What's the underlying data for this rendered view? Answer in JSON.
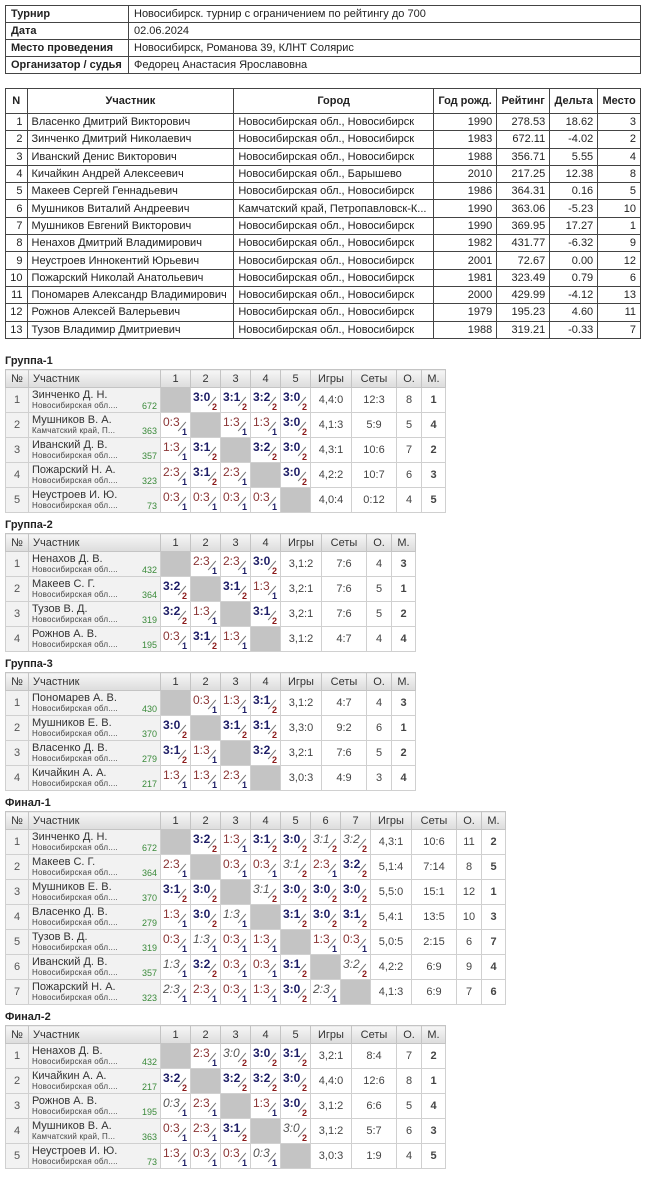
{
  "info": [
    {
      "k": "Турнир",
      "v": "Новосибирск. турнир с ограничением по рейтингу до 700"
    },
    {
      "k": "Дата",
      "v": "02.06.2024"
    },
    {
      "k": "Место проведения",
      "v": "Новосибирск, Романова 39, КЛНТ Солярис"
    },
    {
      "k": "Организатор / судья",
      "v": "Федорец Анастасия Ярославовна"
    }
  ],
  "main": {
    "headers": [
      "N",
      "Участник",
      "Город",
      "Год рожд.",
      "Рейтинг",
      "Дельта",
      "Место"
    ],
    "rows": [
      [
        "1",
        "Власенко Дмитрий Викторович",
        "Новосибирская обл., Новосибирск",
        "1990",
        "278.53",
        "18.62",
        "3"
      ],
      [
        "2",
        "Зинченко Дмитрий Николаевич",
        "Новосибирская обл., Новосибирск",
        "1983",
        "672.11",
        "-4.02",
        "2"
      ],
      [
        "3",
        "Иванский Денис Викторович",
        "Новосибирская обл., Новосибирск",
        "1988",
        "356.71",
        "5.55",
        "4"
      ],
      [
        "4",
        "Кичайкин Андрей Алексеевич",
        "Новосибирская обл., Барышево",
        "2010",
        "217.25",
        "12.38",
        "8"
      ],
      [
        "5",
        "Макеев Сергей Геннадьевич",
        "Новосибирская обл., Новосибирск",
        "1986",
        "364.31",
        "0.16",
        "5"
      ],
      [
        "6",
        "Мушников Виталий Андреевич",
        "Камчатский край, Петропавловск-К...",
        "1990",
        "363.06",
        "-5.23",
        "10"
      ],
      [
        "7",
        "Мушников Евгений Викторович",
        "Новосибирская обл., Новосибирск",
        "1990",
        "369.95",
        "17.27",
        "1"
      ],
      [
        "8",
        "Ненахов Дмитрий Владимирович",
        "Новосибирская обл., Новосибирск",
        "1982",
        "431.77",
        "-6.32",
        "9"
      ],
      [
        "9",
        "Неустроев Иннокентий Юрьевич",
        "Новосибирская обл., Новосибирск",
        "2001",
        "72.67",
        "0.00",
        "12"
      ],
      [
        "10",
        "Пожарский Николай Анатольевич",
        "Новосибирская обл., Новосибирск",
        "1981",
        "323.49",
        "0.79",
        "6"
      ],
      [
        "11",
        "Пономарев Александр Владимирович",
        "Новосибирская обл., Новосибирск",
        "2000",
        "429.99",
        "-4.12",
        "13"
      ],
      [
        "12",
        "Рожнов Алексей Валерьевич",
        "Новосибирская обл., Новосибирск",
        "1979",
        "195.23",
        "4.60",
        "11"
      ],
      [
        "13",
        "Тузов Владимир Дмитриевич",
        "Новосибирская обл., Новосибирск",
        "1988",
        "319.21",
        "-0.33",
        "7"
      ]
    ]
  },
  "group_headers": {
    "no": "№",
    "player": "Участник",
    "games": "Игры",
    "sets": "Сеты",
    "points": "О.",
    "place": "М."
  },
  "groups": [
    {
      "title": "Группа-1",
      "players": [
        {
          "name": "Зинченко Д. Н.",
          "region": "Новосибирская обл....",
          "rating": "672",
          "cells": [
            null,
            "3:0|2",
            "3:1|2",
            "3:2|2",
            "3:0|2"
          ],
          "games": "4,4:0",
          "sets": "12:3",
          "points": "8",
          "place": "1"
        },
        {
          "name": "Мушников В. А.",
          "region": "Камчатский край, П...",
          "rating": "363",
          "cells": [
            "0:3|1",
            null,
            "1:3|1",
            "1:3|1",
            "3:0|2"
          ],
          "games": "4,1:3",
          "sets": "5:9",
          "points": "5",
          "place": "4"
        },
        {
          "name": "Иванский Д. В.",
          "region": "Новосибирская обл....",
          "rating": "357",
          "cells": [
            "1:3|1",
            "3:1|2",
            null,
            "3:2|2",
            "3:0|2"
          ],
          "games": "4,3:1",
          "sets": "10:6",
          "points": "7",
          "place": "2"
        },
        {
          "name": "Пожарский Н. А.",
          "region": "Новосибирская обл....",
          "rating": "323",
          "cells": [
            "2:3|1",
            "3:1|2",
            "2:3|1",
            null,
            "3:0|2"
          ],
          "games": "4,2:2",
          "sets": "10:7",
          "points": "6",
          "place": "3"
        },
        {
          "name": "Неустроев И. Ю.",
          "region": "Новосибирская обл....",
          "rating": "73",
          "cells": [
            "0:3|1",
            "0:3|1",
            "0:3|1",
            "0:3|1",
            null
          ],
          "games": "4,0:4",
          "sets": "0:12",
          "points": "4",
          "place": "5"
        }
      ]
    },
    {
      "title": "Группа-2",
      "players": [
        {
          "name": "Ненахов Д. В.",
          "region": "Новосибирская обл....",
          "rating": "432",
          "cells": [
            null,
            "2:3|1",
            "2:3|1",
            "3:0|2"
          ],
          "games": "3,1:2",
          "sets": "7:6",
          "points": "4",
          "place": "3"
        },
        {
          "name": "Макеев С. Г.",
          "region": "Новосибирская обл....",
          "rating": "364",
          "cells": [
            "3:2|2",
            null,
            "3:1|2",
            "1:3|1"
          ],
          "games": "3,2:1",
          "sets": "7:6",
          "points": "5",
          "place": "1"
        },
        {
          "name": "Тузов В. Д.",
          "region": "Новосибирская обл....",
          "rating": "319",
          "cells": [
            "3:2|2",
            "1:3|1",
            null,
            "3:1|2"
          ],
          "games": "3,2:1",
          "sets": "7:6",
          "points": "5",
          "place": "2"
        },
        {
          "name": "Рожнов А. В.",
          "region": "Новосибирская обл....",
          "rating": "195",
          "cells": [
            "0:3|1",
            "3:1|2",
            "1:3|1",
            null
          ],
          "games": "3,1:2",
          "sets": "4:7",
          "points": "4",
          "place": "4"
        }
      ]
    },
    {
      "title": "Группа-3",
      "players": [
        {
          "name": "Пономарев А. В.",
          "region": "Новосибирская обл....",
          "rating": "430",
          "cells": [
            null,
            "0:3|1",
            "1:3|1",
            "3:1|2"
          ],
          "games": "3,1:2",
          "sets": "4:7",
          "points": "4",
          "place": "3"
        },
        {
          "name": "Мушников Е. В.",
          "region": "Новосибирская обл....",
          "rating": "370",
          "cells": [
            "3:0|2",
            null,
            "3:1|2",
            "3:1|2"
          ],
          "games": "3,3:0",
          "sets": "9:2",
          "points": "6",
          "place": "1"
        },
        {
          "name": "Власенко Д. В.",
          "region": "Новосибирская обл....",
          "rating": "279",
          "cells": [
            "3:1|2",
            "1:3|1",
            null,
            "3:2|2"
          ],
          "games": "3,2:1",
          "sets": "7:6",
          "points": "5",
          "place": "2"
        },
        {
          "name": "Кичайкин А. А.",
          "region": "Новосибирская обл....",
          "rating": "217",
          "cells": [
            "1:3|1",
            "1:3|1",
            "2:3|1",
            null
          ],
          "games": "3,0:3",
          "sets": "4:9",
          "points": "3",
          "place": "4"
        }
      ]
    },
    {
      "title": "Финал-1",
      "players": [
        {
          "name": "Зинченко Д. Н.",
          "region": "Новосибирская обл....",
          "rating": "672",
          "cells": [
            null,
            "3:2|2",
            "1:3|1",
            "3:1|2",
            "3:0|2",
            "3:1|2|i",
            "3:2|2|i"
          ],
          "games": "4,3:1",
          "sets": "10:6",
          "points": "11",
          "place": "2"
        },
        {
          "name": "Макеев С. Г.",
          "region": "Новосибирская обл....",
          "rating": "364",
          "cells": [
            "2:3|1",
            null,
            "0:3|1",
            "0:3|1",
            "3:1|2|i",
            "2:3|1",
            "3:2|2"
          ],
          "games": "5,1:4",
          "sets": "7:14",
          "points": "8",
          "place": "5"
        },
        {
          "name": "Мушников Е. В.",
          "region": "Новосибирская обл....",
          "rating": "370",
          "cells": [
            "3:1|2",
            "3:0|2",
            null,
            "3:1|2|i",
            "3:0|2",
            "3:0|2",
            "3:0|2"
          ],
          "games": "5,5:0",
          "sets": "15:1",
          "points": "12",
          "place": "1"
        },
        {
          "name": "Власенко Д. В.",
          "region": "Новосибирская обл....",
          "rating": "279",
          "cells": [
            "1:3|1",
            "3:0|2",
            "1:3|1|i",
            null,
            "3:1|2",
            "3:0|2",
            "3:1|2"
          ],
          "games": "5,4:1",
          "sets": "13:5",
          "points": "10",
          "place": "3"
        },
        {
          "name": "Тузов В. Д.",
          "region": "Новосибирская обл....",
          "rating": "319",
          "cells": [
            "0:3|1",
            "1:3|1|i",
            "0:3|1",
            "1:3|1",
            null,
            "1:3|1",
            "0:3|1"
          ],
          "games": "5,0:5",
          "sets": "2:15",
          "points": "6",
          "place": "7"
        },
        {
          "name": "Иванский Д. В.",
          "region": "Новосибирская обл....",
          "rating": "357",
          "cells": [
            "1:3|1|i",
            "3:2|2",
            "0:3|1",
            "0:3|1",
            "3:1|2",
            null,
            "3:2|2|i"
          ],
          "games": "4,2:2",
          "sets": "6:9",
          "points": "9",
          "place": "4"
        },
        {
          "name": "Пожарский Н. А.",
          "region": "Новосибирская обл....",
          "rating": "323",
          "cells": [
            "2:3|1|i",
            "2:3|1",
            "0:3|1",
            "1:3|1",
            "3:0|2",
            "2:3|1|i",
            null
          ],
          "games": "4,1:3",
          "sets": "6:9",
          "points": "7",
          "place": "6"
        }
      ]
    },
    {
      "title": "Финал-2",
      "players": [
        {
          "name": "Ненахов Д. В.",
          "region": "Новосибирская обл....",
          "rating": "432",
          "cells": [
            null,
            "2:3|1",
            "3:0|2|i",
            "3:0|2",
            "3:1|2"
          ],
          "games": "3,2:1",
          "sets": "8:4",
          "points": "7",
          "place": "2"
        },
        {
          "name": "Кичайкин А. А.",
          "region": "Новосибирская обл....",
          "rating": "217",
          "cells": [
            "3:2|2",
            null,
            "3:2|2",
            "3:2|2",
            "3:0|2"
          ],
          "games": "4,4:0",
          "sets": "12:6",
          "points": "8",
          "place": "1"
        },
        {
          "name": "Рожнов А. В.",
          "region": "Новосибирская обл....",
          "rating": "195",
          "cells": [
            "0:3|1|i",
            "2:3|1",
            null,
            "1:3|1",
            "3:0|2"
          ],
          "games": "3,1:2",
          "sets": "6:6",
          "points": "5",
          "place": "4"
        },
        {
          "name": "Мушников В. А.",
          "region": "Камчатский край, П...",
          "rating": "363",
          "cells": [
            "0:3|1",
            "2:3|1",
            "3:1|2",
            null,
            "3:0|2|i"
          ],
          "games": "3,1:2",
          "sets": "5:7",
          "points": "6",
          "place": "3"
        },
        {
          "name": "Неустроев И. Ю.",
          "region": "Новосибирская обл....",
          "rating": "73",
          "cells": [
            "1:3|1",
            "0:3|1",
            "0:3|1",
            "0:3|1|i",
            null
          ],
          "games": "3,0:3",
          "sets": "1:9",
          "points": "4",
          "place": "5"
        }
      ]
    }
  ]
}
